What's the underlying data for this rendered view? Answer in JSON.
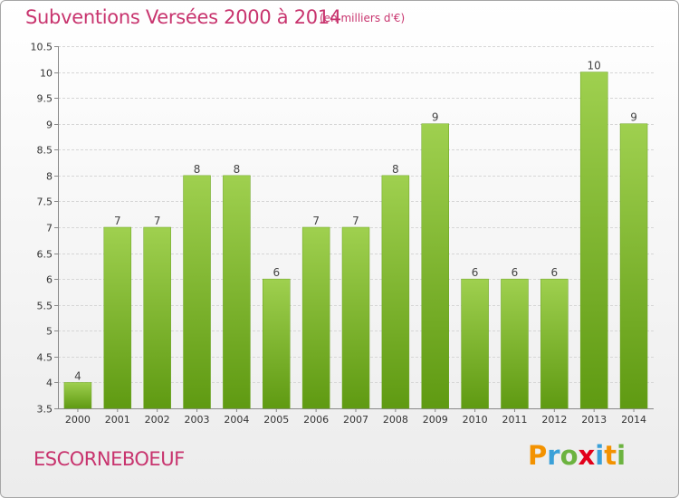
{
  "header": {
    "title": "Subventions Versées 2000 à 2014",
    "subtitle": "(en milliers d'€)"
  },
  "footer": {
    "commune": "ESCORNEBOEUF",
    "logo_letters": [
      "P",
      "r",
      "o",
      "x",
      "i",
      "t",
      "i"
    ],
    "logo_colors": [
      "#f39200",
      "#3aa0d8",
      "#6cb33f",
      "#e2001a",
      "#3aa0d8",
      "#f39200",
      "#6cb33f"
    ]
  },
  "colors": {
    "bar_top": "#9fd04f",
    "bar_bottom": "#5f9a12",
    "title": "#c8346e"
  },
  "chart_data": {
    "type": "bar",
    "title": "Subventions Versées 2000 à 2014",
    "subtitle": "(en milliers d'€)",
    "categories": [
      "2000",
      "2001",
      "2002",
      "2003",
      "2004",
      "2005",
      "2006",
      "2007",
      "2008",
      "2009",
      "2010",
      "2011",
      "2012",
      "2013",
      "2014"
    ],
    "values": [
      4,
      7,
      7,
      8,
      8,
      6,
      7,
      7,
      8,
      9,
      6,
      6,
      6,
      10,
      9
    ],
    "value_labels": [
      "4",
      "7",
      "7",
      "8",
      "8",
      "6",
      "7",
      "7",
      "8",
      "9",
      "6",
      "6",
      "6",
      "10",
      "9"
    ],
    "ylim": [
      3.5,
      10.5
    ],
    "yticks": [
      "3.5",
      "4",
      "4.5",
      "5",
      "5.5",
      "6",
      "6.5",
      "7",
      "7.5",
      "8",
      "8.5",
      "9",
      "9.5",
      "10",
      "10.5"
    ],
    "grid": true,
    "legend": "none"
  }
}
